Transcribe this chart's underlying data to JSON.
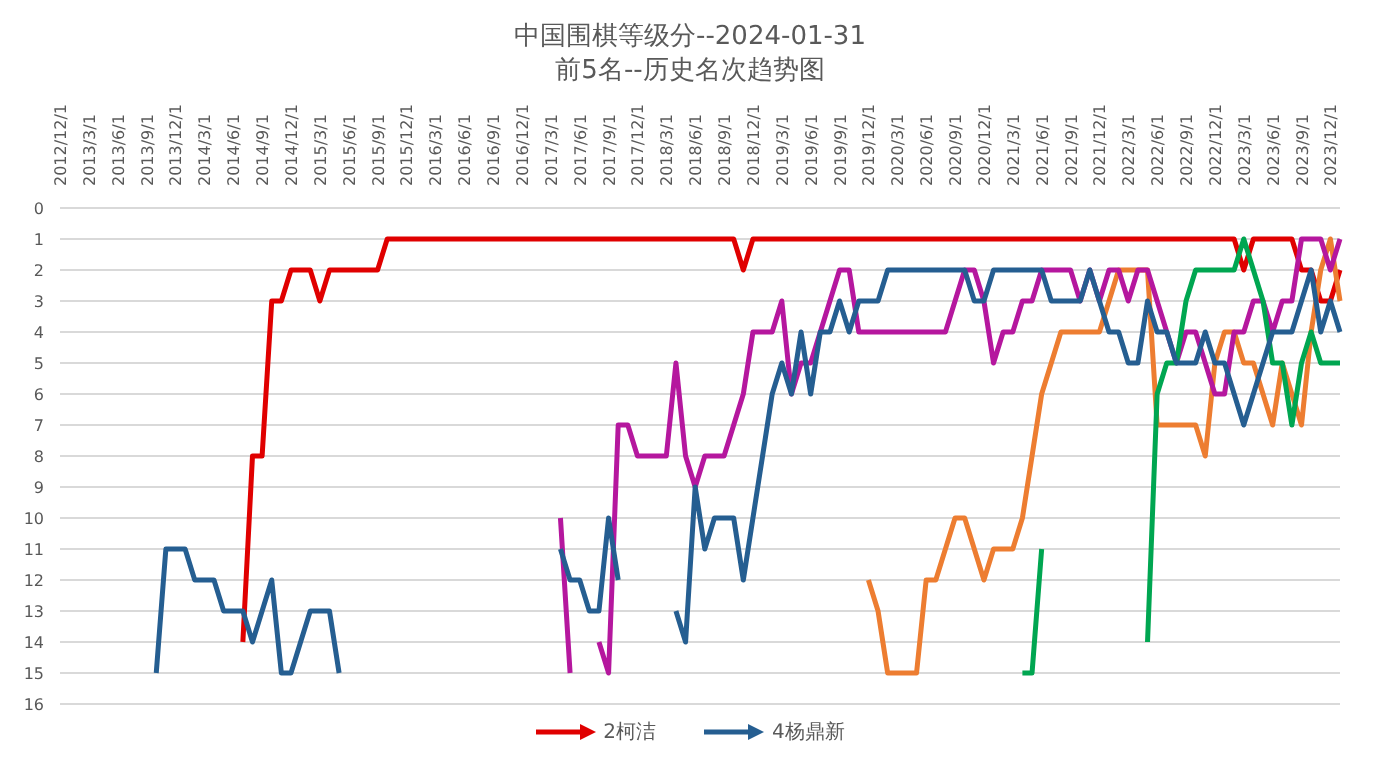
{
  "chart_data": {
    "type": "line",
    "title": "中国围棋等级分--2024-01-31",
    "subtitle": "前5名--历史名次趋势图",
    "categories": [
      "2012/12/1",
      null,
      null,
      "2013/3/1",
      null,
      null,
      "2013/6/1",
      null,
      null,
      "2013/9/1",
      null,
      null,
      "2013/12/1",
      null,
      null,
      "2014/3/1",
      null,
      null,
      "2014/6/1",
      null,
      null,
      "2014/9/1",
      null,
      null,
      "2014/12/1",
      null,
      null,
      "2015/3/1",
      null,
      null,
      "2015/6/1",
      null,
      null,
      "2015/9/1",
      null,
      null,
      "2015/12/1",
      null,
      null,
      "2016/3/1",
      null,
      null,
      "2016/6/1",
      null,
      null,
      "2016/9/1",
      null,
      null,
      "2016/12/1",
      null,
      null,
      "2017/3/1",
      null,
      null,
      "2017/6/1",
      null,
      null,
      "2017/9/1",
      null,
      null,
      "2017/12/1",
      null,
      null,
      "2018/3/1",
      null,
      null,
      "2018/6/1",
      null,
      null,
      "2018/9/1",
      null,
      null,
      "2018/12/1",
      null,
      null,
      "2019/3/1",
      null,
      null,
      "2019/6/1",
      null,
      null,
      "2019/9/1",
      null,
      null,
      "2019/12/1",
      null,
      null,
      "2020/3/1",
      null,
      null,
      "2020/6/1",
      null,
      null,
      "2020/9/1",
      null,
      null,
      "2020/12/1",
      null,
      null,
      "2021/3/1",
      null,
      null,
      "2021/6/1",
      null,
      null,
      "2021/9/1",
      null,
      null,
      "2021/12/1",
      null,
      null,
      "2022/3/1",
      null,
      null,
      "2022/6/1",
      null,
      null,
      "2022/9/1",
      null,
      null,
      "2022/12/1",
      null,
      null,
      "2023/3/1",
      null,
      null,
      "2023/6/1",
      null,
      null,
      "2023/9/1",
      null,
      null,
      "2023/12/1",
      null
    ],
    "series": [
      {
        "name": "2柯洁",
        "color": "#e00000",
        "values": [
          null,
          null,
          null,
          null,
          null,
          null,
          null,
          null,
          null,
          null,
          null,
          null,
          null,
          null,
          null,
          null,
          null,
          null,
          null,
          14,
          8,
          8,
          3,
          3,
          2,
          2,
          2,
          3,
          2,
          2,
          2,
          2,
          2,
          2,
          1,
          1,
          1,
          1,
          1,
          1,
          1,
          1,
          1,
          1,
          1,
          1,
          1,
          1,
          1,
          1,
          1,
          1,
          1,
          1,
          1,
          1,
          1,
          1,
          1,
          1,
          1,
          1,
          1,
          1,
          1,
          1,
          1,
          1,
          1,
          1,
          1,
          2,
          1,
          1,
          1,
          1,
          1,
          1,
          1,
          1,
          1,
          1,
          1,
          1,
          1,
          1,
          1,
          1,
          1,
          1,
          1,
          1,
          1,
          1,
          1,
          1,
          1,
          1,
          1,
          1,
          1,
          1,
          1,
          1,
          1,
          1,
          1,
          1,
          1,
          1,
          1,
          1,
          1,
          1,
          1,
          1,
          1,
          1,
          1,
          1,
          1,
          1,
          1,
          2,
          1,
          1,
          1,
          1,
          1,
          2,
          2,
          3,
          3,
          2
        ]
      },
      {
        "color": "#ed7d31",
        "values": [
          null,
          null,
          null,
          null,
          null,
          null,
          null,
          null,
          null,
          null,
          null,
          null,
          null,
          null,
          null,
          null,
          null,
          null,
          null,
          null,
          null,
          null,
          null,
          null,
          null,
          null,
          null,
          null,
          null,
          null,
          null,
          null,
          null,
          null,
          null,
          null,
          null,
          null,
          null,
          null,
          null,
          null,
          null,
          null,
          null,
          null,
          null,
          null,
          null,
          null,
          null,
          null,
          null,
          null,
          null,
          null,
          null,
          null,
          null,
          null,
          null,
          null,
          null,
          null,
          null,
          null,
          null,
          null,
          null,
          null,
          null,
          null,
          null,
          null,
          null,
          null,
          null,
          null,
          null,
          null,
          null,
          null,
          null,
          null,
          12,
          13,
          15,
          15,
          15,
          15,
          12,
          12,
          11,
          10,
          10,
          11,
          12,
          11,
          11,
          11,
          10,
          8,
          6,
          5,
          4,
          4,
          4,
          4,
          4,
          3,
          2,
          2,
          2,
          2,
          7,
          7,
          7,
          7,
          7,
          8,
          5,
          4,
          4,
          5,
          5,
          6,
          7,
          5,
          6,
          7,
          4,
          2,
          1,
          3
        ]
      },
      {
        "color": "#b5179e",
        "values": [
          null,
          null,
          null,
          null,
          null,
          null,
          null,
          null,
          null,
          null,
          null,
          null,
          null,
          null,
          null,
          null,
          null,
          null,
          null,
          null,
          null,
          null,
          null,
          null,
          null,
          null,
          null,
          null,
          null,
          null,
          null,
          null,
          null,
          null,
          null,
          null,
          null,
          null,
          null,
          null,
          null,
          null,
          null,
          null,
          null,
          null,
          null,
          null,
          null,
          null,
          null,
          null,
          10,
          15,
          null,
          null,
          14,
          15,
          7,
          7,
          8,
          8,
          8,
          8,
          5,
          8,
          9,
          8,
          8,
          8,
          7,
          6,
          4,
          4,
          4,
          3,
          6,
          5,
          5,
          4,
          3,
          2,
          2,
          4,
          4,
          4,
          4,
          4,
          4,
          4,
          4,
          4,
          4,
          3,
          2,
          2,
          3,
          5,
          4,
          4,
          3,
          3,
          2,
          2,
          2,
          2,
          3,
          2,
          3,
          2,
          2,
          3,
          2,
          2,
          3,
          4,
          5,
          4,
          4,
          5,
          6,
          6,
          4,
          4,
          3,
          3,
          4,
          3,
          3,
          1,
          1,
          1,
          2,
          1
        ]
      },
      {
        "color": "#00a651",
        "values": [
          null,
          null,
          null,
          null,
          null,
          null,
          null,
          null,
          null,
          null,
          null,
          null,
          null,
          null,
          null,
          null,
          null,
          null,
          null,
          null,
          null,
          null,
          null,
          null,
          null,
          null,
          null,
          null,
          null,
          null,
          null,
          null,
          null,
          null,
          null,
          null,
          null,
          null,
          null,
          null,
          null,
          null,
          null,
          null,
          null,
          null,
          null,
          null,
          null,
          null,
          null,
          null,
          null,
          null,
          null,
          null,
          null,
          null,
          null,
          null,
          null,
          null,
          null,
          null,
          null,
          null,
          null,
          null,
          null,
          null,
          null,
          null,
          null,
          null,
          null,
          null,
          null,
          null,
          null,
          null,
          null,
          null,
          null,
          null,
          null,
          null,
          null,
          null,
          null,
          null,
          null,
          null,
          null,
          null,
          null,
          null,
          null,
          null,
          null,
          null,
          15,
          15,
          11,
          null,
          null,
          null,
          null,
          null,
          null,
          null,
          null,
          null,
          null,
          14,
          6,
          5,
          5,
          3,
          2,
          2,
          2,
          2,
          2,
          1,
          2,
          3,
          5,
          5,
          7,
          5,
          4,
          5,
          5,
          5
        ]
      },
      {
        "name": "4杨鼎新",
        "color": "#255e91",
        "values": [
          null,
          null,
          null,
          null,
          null,
          null,
          null,
          null,
          null,
          null,
          15,
          11,
          11,
          11,
          12,
          12,
          12,
          13,
          13,
          13,
          14,
          13,
          12,
          15,
          15,
          14,
          13,
          13,
          13,
          15,
          null,
          null,
          null,
          null,
          null,
          null,
          null,
          null,
          null,
          null,
          null,
          null,
          null,
          null,
          null,
          null,
          null,
          null,
          null,
          null,
          null,
          null,
          11,
          12,
          12,
          13,
          13,
          10,
          12,
          null,
          null,
          null,
          null,
          null,
          13,
          14,
          9,
          11,
          10,
          10,
          10,
          12,
          10,
          8,
          6,
          5,
          6,
          4,
          6,
          4,
          4,
          3,
          4,
          3,
          3,
          3,
          2,
          2,
          2,
          2,
          2,
          2,
          2,
          2,
          2,
          3,
          3,
          2,
          2,
          2,
          2,
          2,
          2,
          3,
          3,
          3,
          3,
          2,
          3,
          4,
          4,
          5,
          5,
          3,
          4,
          4,
          5,
          5,
          5,
          4,
          5,
          5,
          6,
          7,
          6,
          5,
          4,
          4,
          4,
          3,
          2,
          4,
          3,
          4
        ]
      }
    ],
    "ylim": [
      16,
      0
    ],
    "yticks": [
      0,
      1,
      2,
      3,
      4,
      5,
      6,
      7,
      8,
      9,
      10,
      11,
      12,
      13,
      14,
      15,
      16
    ],
    "grid": "y",
    "legend": "bottom",
    "marker": "none",
    "line_style": "solid"
  }
}
